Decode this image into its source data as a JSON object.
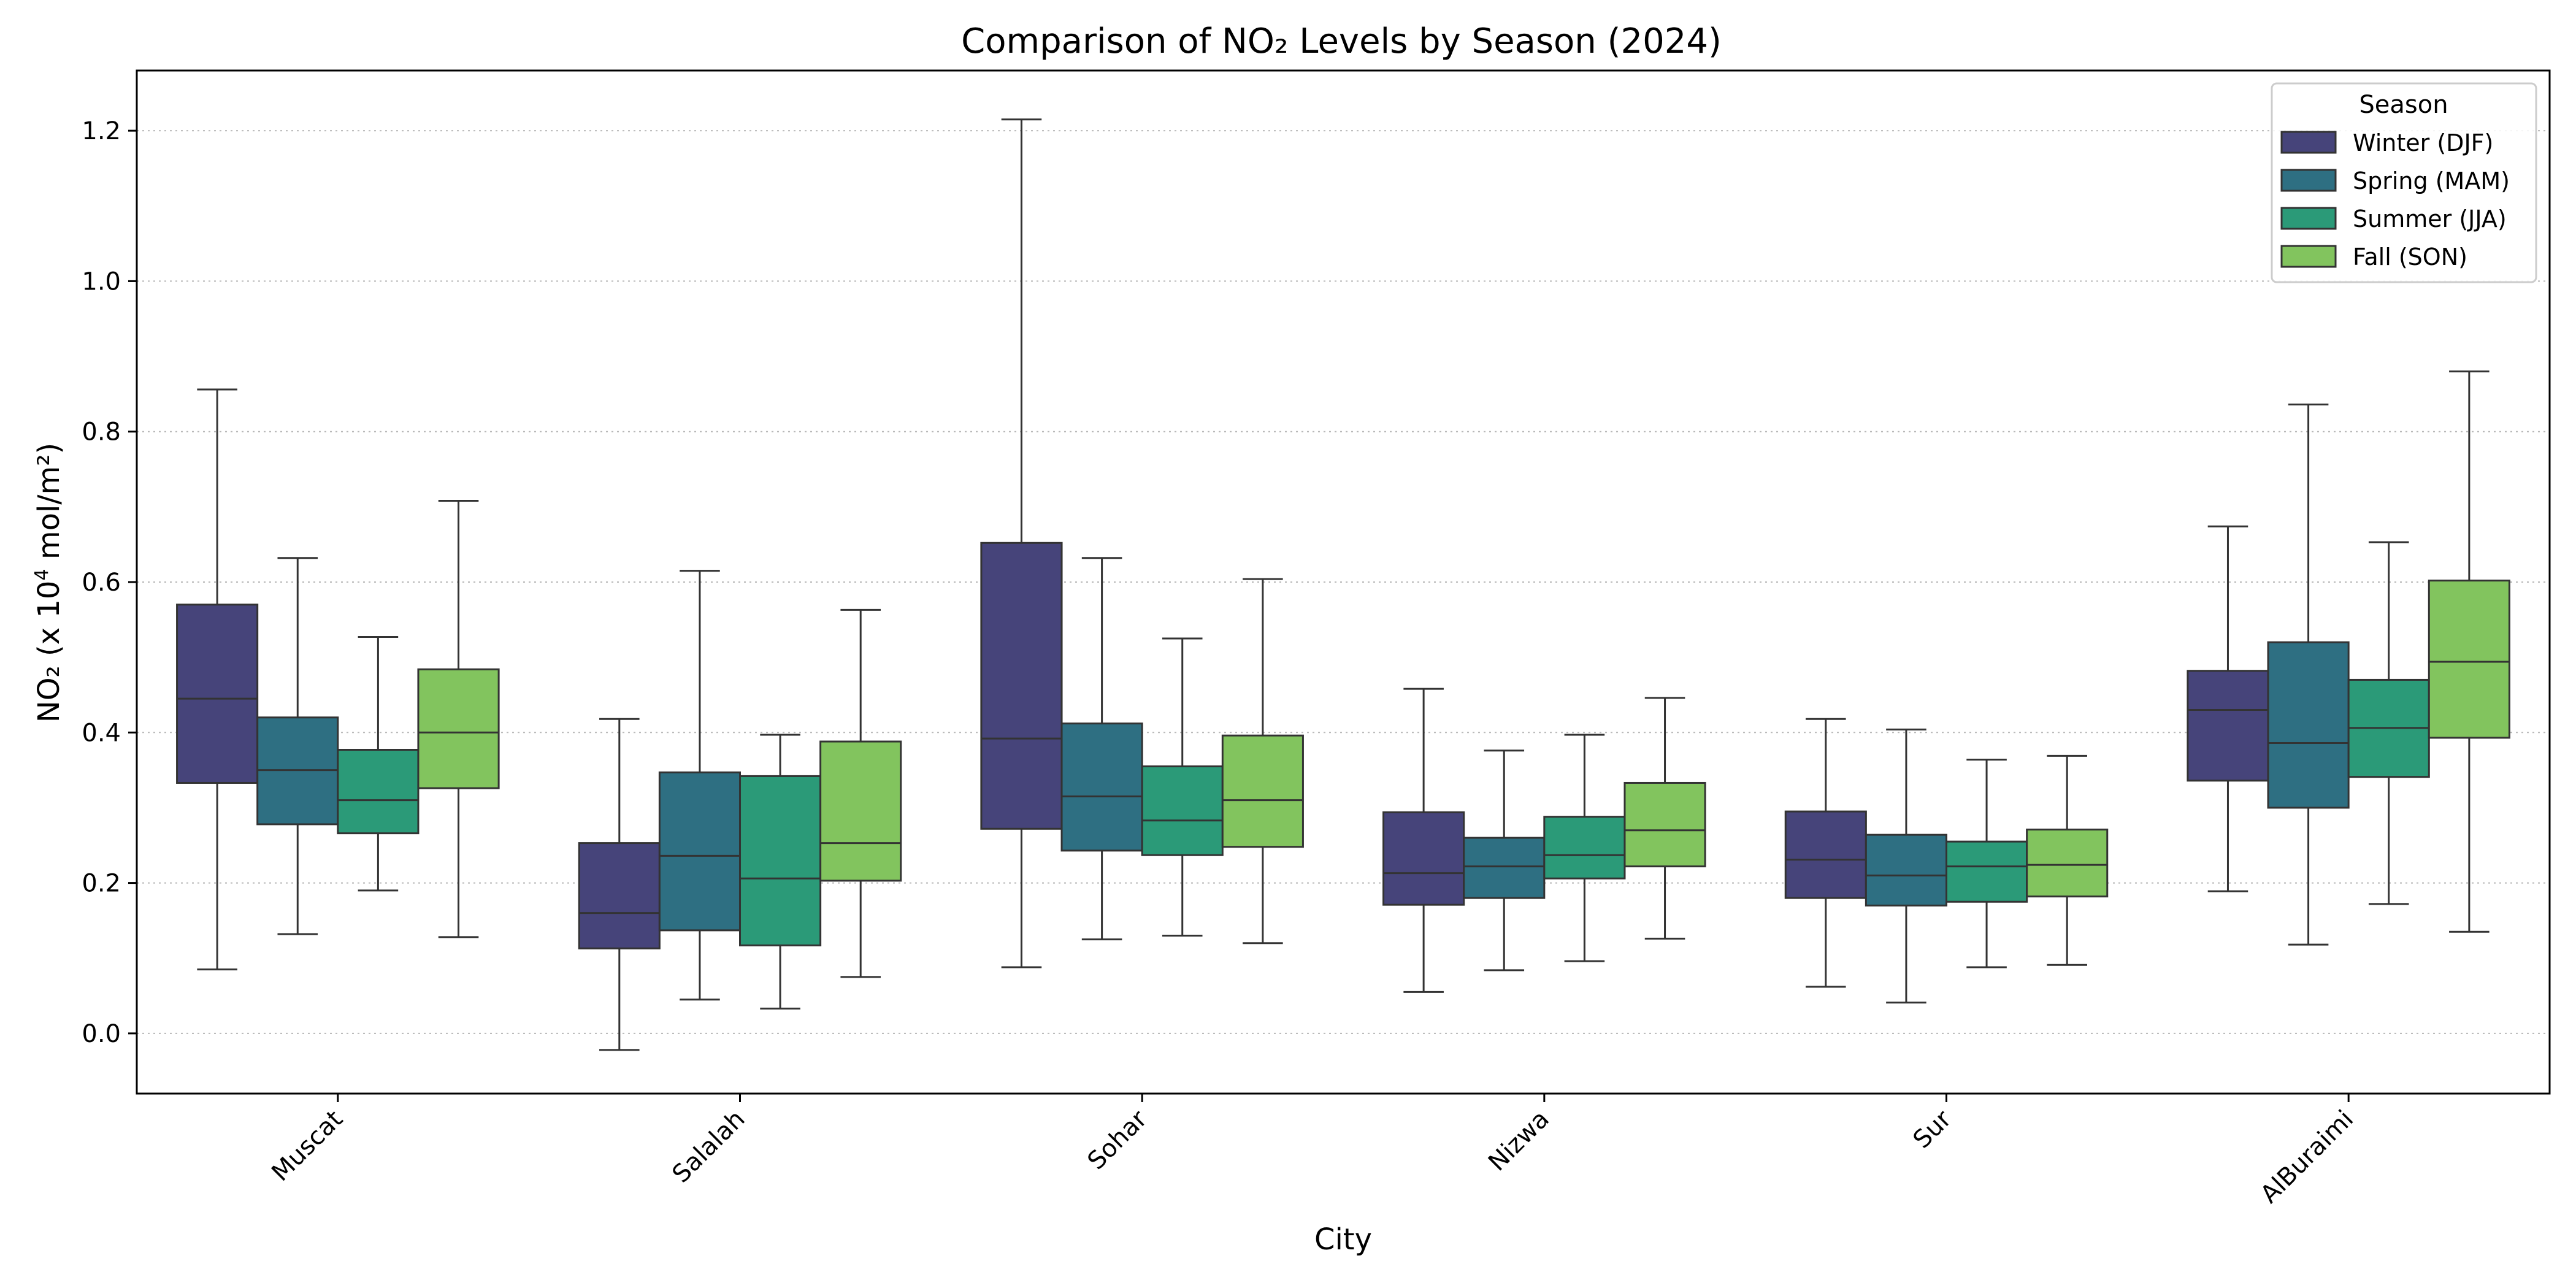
{
  "chart_data": {
    "type": "boxplot",
    "title": "Comparison of NO₂ Levels by Season (2024)",
    "xlabel": "City",
    "ylabel": {
      "prefix": "NO₂ (x 10",
      "superscript": "4",
      "suffix": " mol/m²)"
    },
    "ylim": [
      -0.08,
      1.28
    ],
    "yticks": [
      0.0,
      0.2,
      0.4,
      0.6,
      0.8,
      1.0,
      1.2
    ],
    "ytick_labels": [
      "0.0",
      "0.2",
      "0.4",
      "0.6",
      "0.8",
      "1.0",
      "1.2"
    ],
    "grid": "y-dotted",
    "legend": {
      "title": "Season",
      "placement": "top-right"
    },
    "categories": [
      "Muscat",
      "Salalah",
      "Sohar",
      "Nizwa",
      "Sur",
      "AlBuraimi"
    ],
    "series": [
      {
        "name": "Winter (DJF)",
        "color": "#46447a",
        "boxes": [
          {
            "whislo": 0.085,
            "q1": 0.333,
            "med": 0.445,
            "q3": 0.57,
            "whishi": 0.856
          },
          {
            "whislo": -0.022,
            "q1": 0.113,
            "med": 0.16,
            "q3": 0.253,
            "whishi": 0.418
          },
          {
            "whislo": 0.088,
            "q1": 0.272,
            "med": 0.392,
            "q3": 0.652,
            "whishi": 1.215
          },
          {
            "whislo": 0.055,
            "q1": 0.171,
            "med": 0.213,
            "q3": 0.294,
            "whishi": 0.458
          },
          {
            "whislo": 0.062,
            "q1": 0.18,
            "med": 0.231,
            "q3": 0.295,
            "whishi": 0.418
          },
          {
            "whislo": 0.189,
            "q1": 0.336,
            "med": 0.43,
            "q3": 0.482,
            "whishi": 0.674
          }
        ]
      },
      {
        "name": "Spring (MAM)",
        "color": "#2e6f82",
        "boxes": [
          {
            "whislo": 0.132,
            "q1": 0.278,
            "med": 0.35,
            "q3": 0.42,
            "whishi": 0.632
          },
          {
            "whislo": 0.045,
            "q1": 0.137,
            "med": 0.236,
            "q3": 0.347,
            "whishi": 0.615
          },
          {
            "whislo": 0.125,
            "q1": 0.243,
            "med": 0.315,
            "q3": 0.412,
            "whishi": 0.632
          },
          {
            "whislo": 0.084,
            "q1": 0.18,
            "med": 0.222,
            "q3": 0.26,
            "whishi": 0.376
          },
          {
            "whislo": 0.041,
            "q1": 0.17,
            "med": 0.21,
            "q3": 0.264,
            "whishi": 0.404
          },
          {
            "whislo": 0.118,
            "q1": 0.3,
            "med": 0.386,
            "q3": 0.52,
            "whishi": 0.836
          }
        ]
      },
      {
        "name": "Summer (JJA)",
        "color": "#2b9a78",
        "boxes": [
          {
            "whislo": 0.19,
            "q1": 0.266,
            "med": 0.31,
            "q3": 0.377,
            "whishi": 0.527
          },
          {
            "whislo": 0.033,
            "q1": 0.117,
            "med": 0.206,
            "q3": 0.342,
            "whishi": 0.397
          },
          {
            "whislo": 0.13,
            "q1": 0.237,
            "med": 0.283,
            "q3": 0.355,
            "whishi": 0.525
          },
          {
            "whislo": 0.096,
            "q1": 0.206,
            "med": 0.237,
            "q3": 0.288,
            "whishi": 0.397
          },
          {
            "whislo": 0.088,
            "q1": 0.175,
            "med": 0.222,
            "q3": 0.255,
            "whishi": 0.364
          },
          {
            "whislo": 0.172,
            "q1": 0.341,
            "med": 0.406,
            "q3": 0.47,
            "whishi": 0.653
          }
        ]
      },
      {
        "name": "Fall (SON)",
        "color": "#82c45e",
        "boxes": [
          {
            "whislo": 0.128,
            "q1": 0.326,
            "med": 0.4,
            "q3": 0.484,
            "whishi": 0.708
          },
          {
            "whislo": 0.075,
            "q1": 0.203,
            "med": 0.253,
            "q3": 0.388,
            "whishi": 0.563
          },
          {
            "whislo": 0.12,
            "q1": 0.248,
            "med": 0.31,
            "q3": 0.396,
            "whishi": 0.604
          },
          {
            "whislo": 0.126,
            "q1": 0.222,
            "med": 0.27,
            "q3": 0.333,
            "whishi": 0.446
          },
          {
            "whislo": 0.091,
            "q1": 0.182,
            "med": 0.224,
            "q3": 0.271,
            "whishi": 0.369
          },
          {
            "whislo": 0.135,
            "q1": 0.393,
            "med": 0.494,
            "q3": 0.602,
            "whishi": 0.88
          }
        ]
      }
    ]
  }
}
